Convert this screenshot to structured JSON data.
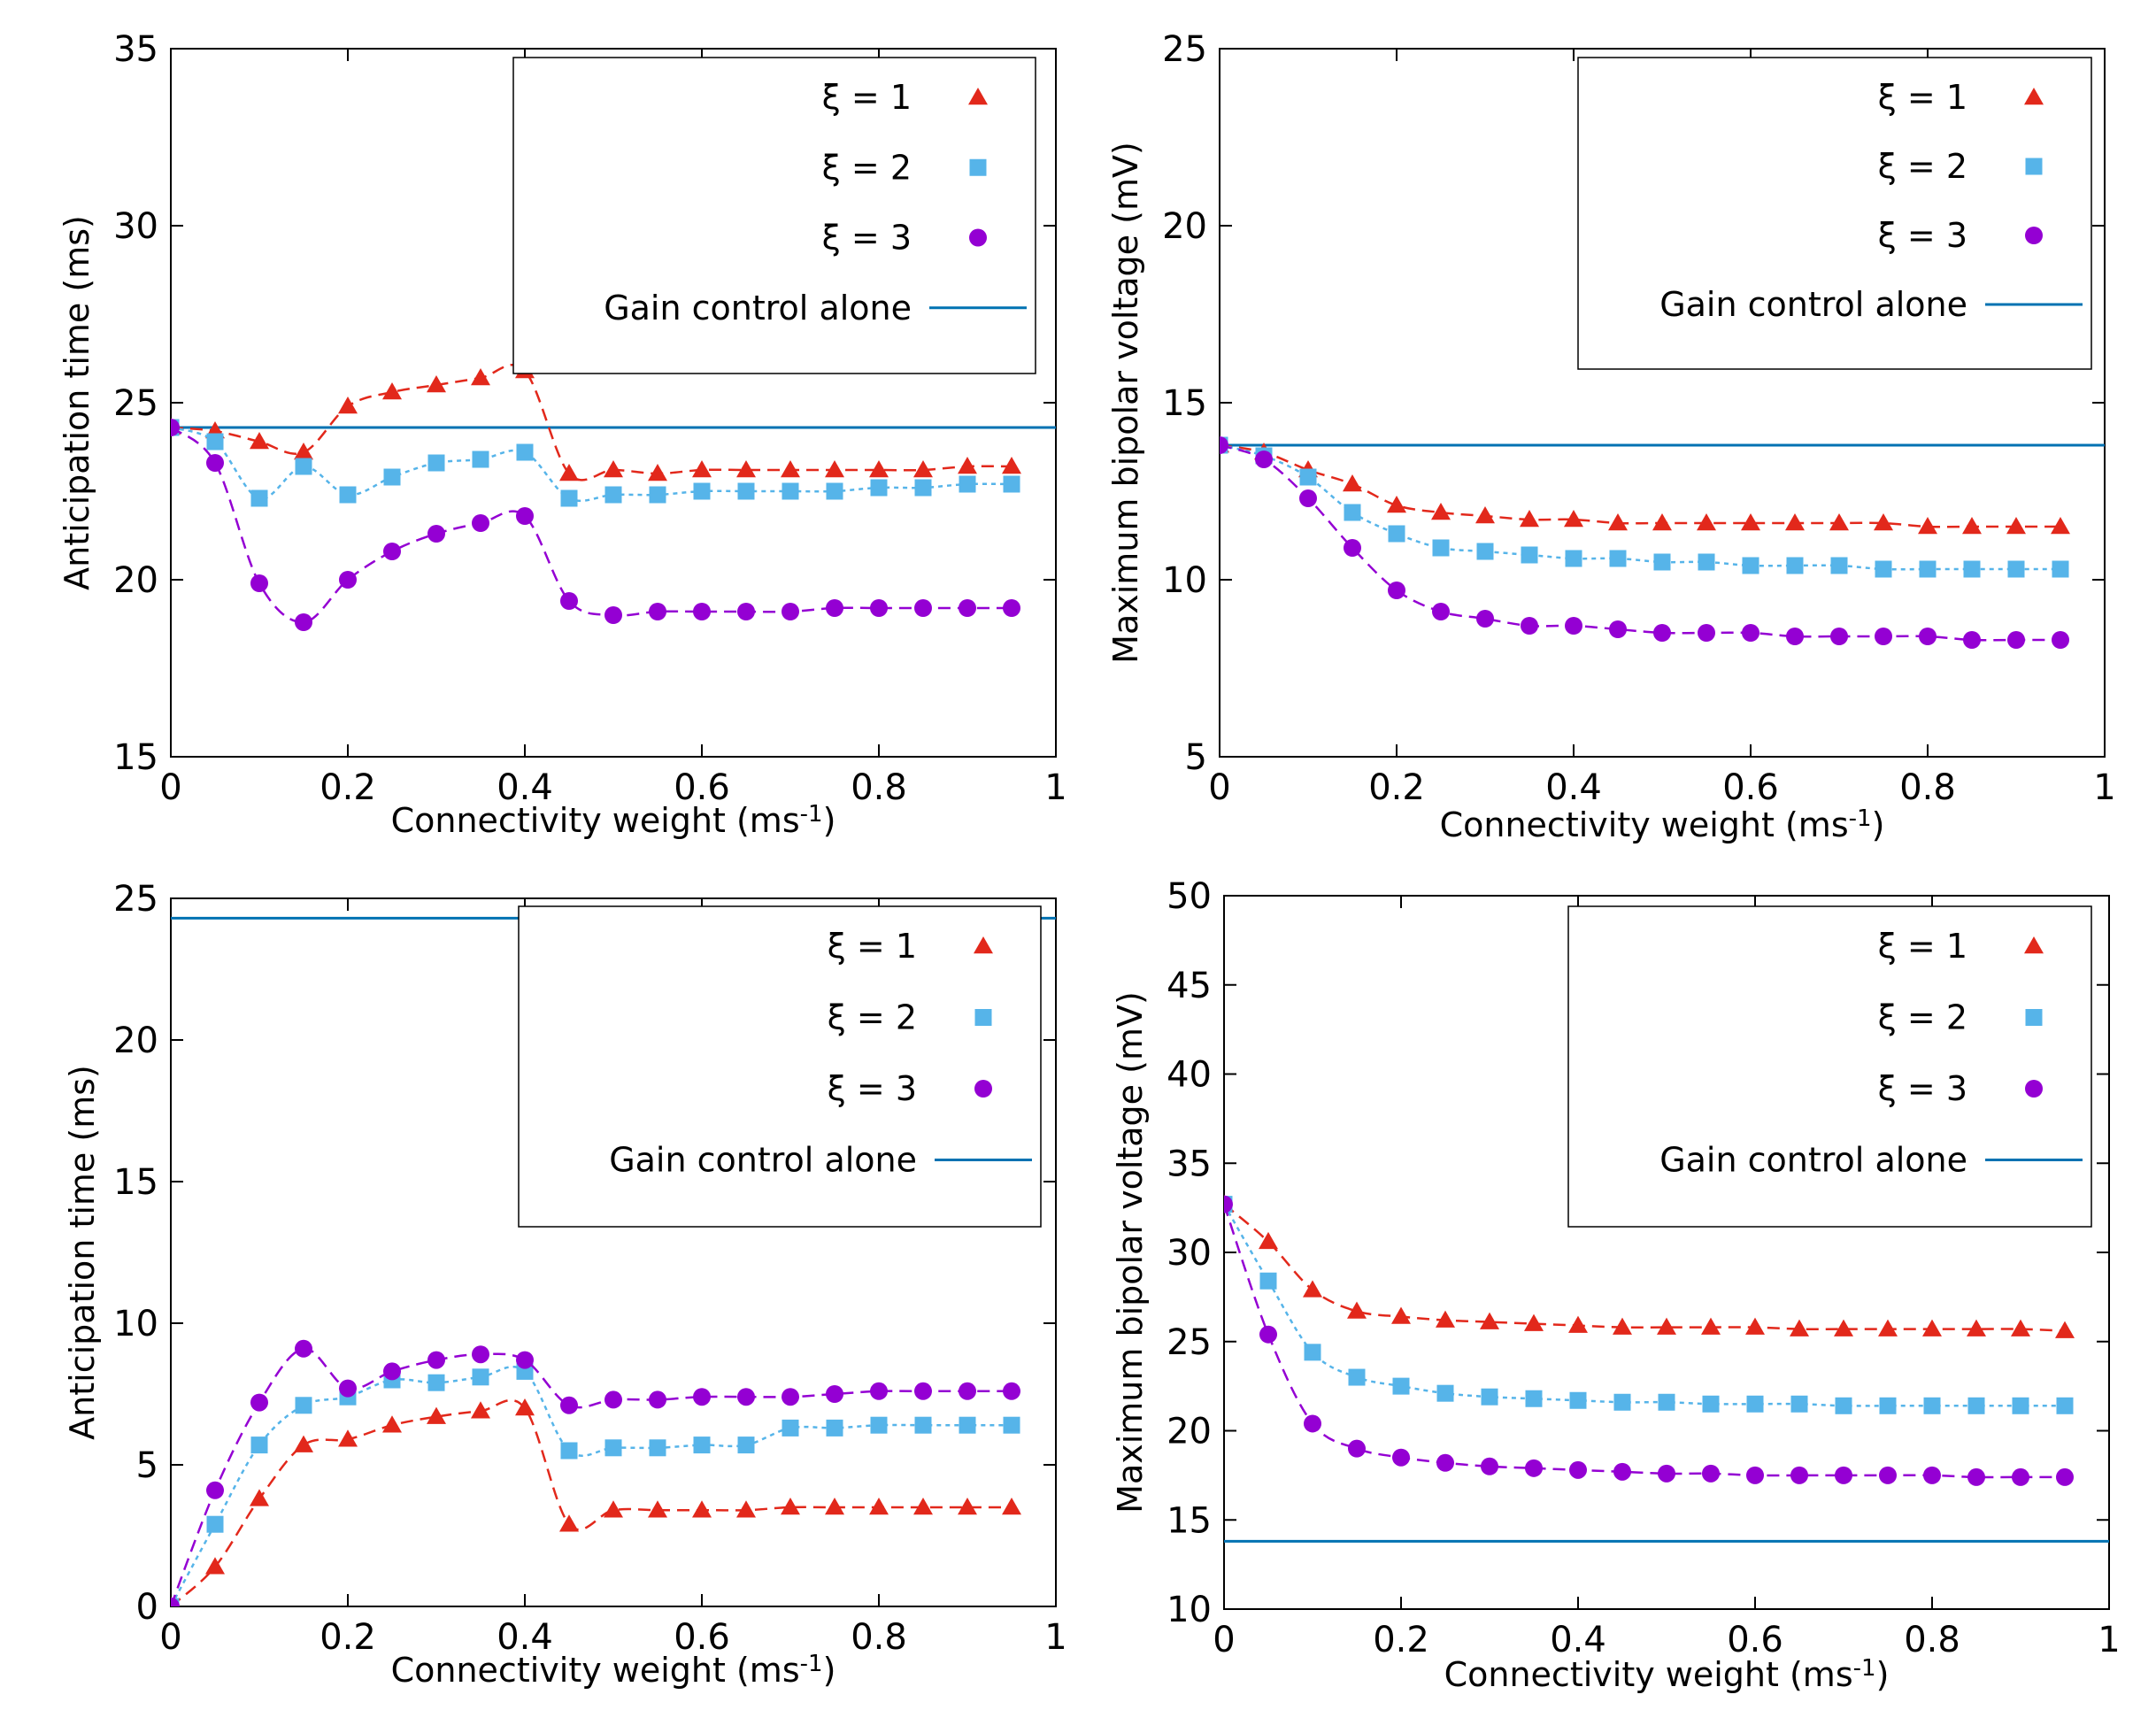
{
  "colors": {
    "xi1": "#e2281b",
    "xi2": "#56b4e9",
    "xi3": "#9400d3",
    "gain": "#0072b2",
    "axis": "#000000"
  },
  "legend_labels": {
    "xi1": "ξ = 1",
    "xi2": "ξ = 2",
    "xi3": "ξ = 3",
    "gain": "Gain control alone"
  },
  "chart_data": [
    {
      "id": "top-left",
      "type": "line",
      "xlabel": "Connectivity weight (ms",
      "xlabel_sup": "-1",
      "xlabel_end": ")",
      "ylabel": "Anticipation time (ms)",
      "xlim": [
        0,
        1
      ],
      "ylim": [
        15,
        35
      ],
      "xticks": [
        0,
        0.2,
        0.4,
        0.6,
        0.8,
        1
      ],
      "xtick_labels": [
        "0",
        "0.2",
        "0.4",
        "0.6",
        "0.8",
        "1"
      ],
      "yticks": [
        15,
        20,
        25,
        30,
        35
      ],
      "ytick_labels": [
        "15",
        "20",
        "25",
        "30",
        "35"
      ],
      "x": [
        0,
        0.05,
        0.1,
        0.15,
        0.2,
        0.25,
        0.3,
        0.35,
        0.4,
        0.45,
        0.5,
        0.55,
        0.6,
        0.65,
        0.7,
        0.75,
        0.8,
        0.85,
        0.9,
        0.95
      ],
      "series": [
        {
          "name": "ξ = 1",
          "key": "xi1",
          "marker": "triangle",
          "values": [
            24.3,
            24.2,
            23.9,
            23.6,
            24.9,
            25.3,
            25.5,
            25.7,
            25.9,
            23.0,
            23.1,
            23.0,
            23.1,
            23.1,
            23.1,
            23.1,
            23.1,
            23.1,
            23.2,
            23.2
          ]
        },
        {
          "name": "ξ = 2",
          "key": "xi2",
          "marker": "square",
          "values": [
            24.3,
            23.9,
            22.3,
            23.2,
            22.4,
            22.9,
            23.3,
            23.4,
            23.6,
            22.3,
            22.4,
            22.4,
            22.5,
            22.5,
            22.5,
            22.5,
            22.6,
            22.6,
            22.7,
            22.7
          ]
        },
        {
          "name": "ξ = 3",
          "key": "xi3",
          "marker": "circle",
          "values": [
            24.3,
            23.3,
            19.9,
            18.8,
            20.0,
            20.8,
            21.3,
            21.6,
            21.8,
            19.4,
            19.0,
            19.1,
            19.1,
            19.1,
            19.1,
            19.2,
            19.2,
            19.2,
            19.2,
            19.2
          ]
        }
      ],
      "gain_control": 24.3,
      "legend_position": "top-right"
    },
    {
      "id": "top-right",
      "type": "line",
      "xlabel": "Connectivity weight (ms",
      "xlabel_sup": "-1",
      "xlabel_end": ")",
      "ylabel": "Maximum bipolar voltage (mV)",
      "xlim": [
        0,
        1
      ],
      "ylim": [
        5,
        25
      ],
      "xticks": [
        0,
        0.2,
        0.4,
        0.6,
        0.8,
        1
      ],
      "xtick_labels": [
        "0",
        "0.2",
        "0.4",
        "0.6",
        "0.8",
        "1"
      ],
      "yticks": [
        5,
        10,
        15,
        20,
        25
      ],
      "ytick_labels": [
        "5",
        "10",
        "15",
        "20",
        "25"
      ],
      "x": [
        0,
        0.05,
        0.1,
        0.15,
        0.2,
        0.25,
        0.3,
        0.35,
        0.4,
        0.45,
        0.5,
        0.55,
        0.6,
        0.65,
        0.7,
        0.75,
        0.8,
        0.85,
        0.9,
        0.95
      ],
      "series": [
        {
          "name": "ξ = 1",
          "key": "xi1",
          "marker": "triangle",
          "values": [
            13.8,
            13.6,
            13.1,
            12.7,
            12.1,
            11.9,
            11.8,
            11.7,
            11.7,
            11.6,
            11.6,
            11.6,
            11.6,
            11.6,
            11.6,
            11.6,
            11.5,
            11.5,
            11.5,
            11.5
          ]
        },
        {
          "name": "ξ = 2",
          "key": "xi2",
          "marker": "square",
          "values": [
            13.8,
            13.5,
            12.9,
            11.9,
            11.3,
            10.9,
            10.8,
            10.7,
            10.6,
            10.6,
            10.5,
            10.5,
            10.4,
            10.4,
            10.4,
            10.3,
            10.3,
            10.3,
            10.3,
            10.3
          ]
        },
        {
          "name": "ξ = 3",
          "key": "xi3",
          "marker": "circle",
          "values": [
            13.8,
            13.4,
            12.3,
            10.9,
            9.7,
            9.1,
            8.9,
            8.7,
            8.7,
            8.6,
            8.5,
            8.5,
            8.5,
            8.4,
            8.4,
            8.4,
            8.4,
            8.3,
            8.3,
            8.3
          ]
        }
      ],
      "gain_control": 13.8,
      "legend_position": "top-right"
    },
    {
      "id": "bottom-left",
      "type": "line",
      "xlabel": "Connectivity weight (ms",
      "xlabel_sup": "-1",
      "xlabel_end": ")",
      "ylabel": "Anticipation time (ms)",
      "xlim": [
        0,
        1
      ],
      "ylim": [
        0,
        25
      ],
      "xticks": [
        0,
        0.2,
        0.4,
        0.6,
        0.8,
        1
      ],
      "xtick_labels": [
        "0",
        "0.2",
        "0.4",
        "0.6",
        "0.8",
        "1"
      ],
      "yticks": [
        0,
        5,
        10,
        15,
        20,
        25
      ],
      "ytick_labels": [
        "0",
        "5",
        "10",
        "15",
        "20",
        "25"
      ],
      "x": [
        0,
        0.05,
        0.1,
        0.15,
        0.2,
        0.25,
        0.3,
        0.35,
        0.4,
        0.45,
        0.5,
        0.55,
        0.6,
        0.65,
        0.7,
        0.75,
        0.8,
        0.85,
        0.9,
        0.95
      ],
      "series": [
        {
          "name": "ξ = 1",
          "key": "xi1",
          "marker": "triangle",
          "values": [
            0,
            1.4,
            3.8,
            5.7,
            5.9,
            6.4,
            6.7,
            6.9,
            7.0,
            2.9,
            3.4,
            3.4,
            3.4,
            3.4,
            3.5,
            3.5,
            3.5,
            3.5,
            3.5,
            3.5
          ]
        },
        {
          "name": "ξ = 2",
          "key": "xi2",
          "marker": "square",
          "values": [
            0,
            2.9,
            5.7,
            7.1,
            7.4,
            8.0,
            7.9,
            8.1,
            8.3,
            5.5,
            5.6,
            5.6,
            5.7,
            5.7,
            6.3,
            6.3,
            6.4,
            6.4,
            6.4,
            6.4
          ]
        },
        {
          "name": "ξ = 3",
          "key": "xi3",
          "marker": "circle",
          "values": [
            0,
            4.1,
            7.2,
            9.1,
            7.7,
            8.3,
            8.7,
            8.9,
            8.7,
            7.1,
            7.3,
            7.3,
            7.4,
            7.4,
            7.4,
            7.5,
            7.6,
            7.6,
            7.6,
            7.6
          ]
        }
      ],
      "gain_control": 24.3,
      "legend_position": "top-right"
    },
    {
      "id": "bottom-right",
      "type": "line",
      "xlabel": "Connectivity weight (ms",
      "xlabel_sup": "-1",
      "xlabel_end": ")",
      "ylabel": "Maximum bipolar voltage (mV)",
      "xlim": [
        0,
        1
      ],
      "ylim": [
        10,
        50
      ],
      "xticks": [
        0,
        0.2,
        0.4,
        0.6,
        0.8,
        1
      ],
      "xtick_labels": [
        "0",
        "0.2",
        "0.4",
        "0.6",
        "0.8",
        "1"
      ],
      "yticks": [
        10,
        15,
        20,
        25,
        30,
        35,
        40,
        45,
        50
      ],
      "ytick_labels": [
        "10",
        "15",
        "20",
        "25",
        "30",
        "35",
        "40",
        "45",
        "50"
      ],
      "x": [
        0,
        0.05,
        0.1,
        0.15,
        0.2,
        0.25,
        0.3,
        0.35,
        0.4,
        0.45,
        0.5,
        0.55,
        0.6,
        0.65,
        0.7,
        0.75,
        0.8,
        0.85,
        0.9,
        0.95
      ],
      "series": [
        {
          "name": "ξ = 1",
          "key": "xi1",
          "marker": "triangle",
          "values": [
            32.7,
            30.6,
            27.9,
            26.7,
            26.4,
            26.2,
            26.1,
            26.0,
            25.9,
            25.8,
            25.8,
            25.8,
            25.8,
            25.7,
            25.7,
            25.7,
            25.7,
            25.7,
            25.7,
            25.6
          ]
        },
        {
          "name": "ξ = 2",
          "key": "xi2",
          "marker": "square",
          "values": [
            32.7,
            28.4,
            24.4,
            23.0,
            22.5,
            22.1,
            21.9,
            21.8,
            21.7,
            21.6,
            21.6,
            21.5,
            21.5,
            21.5,
            21.4,
            21.4,
            21.4,
            21.4,
            21.4,
            21.4
          ]
        },
        {
          "name": "ξ = 3",
          "key": "xi3",
          "marker": "circle",
          "values": [
            32.7,
            25.4,
            20.4,
            19.0,
            18.5,
            18.2,
            18.0,
            17.9,
            17.8,
            17.7,
            17.6,
            17.6,
            17.5,
            17.5,
            17.5,
            17.5,
            17.5,
            17.4,
            17.4,
            17.4
          ]
        }
      ],
      "gain_control": 13.8,
      "legend_position": "top-right"
    }
  ]
}
